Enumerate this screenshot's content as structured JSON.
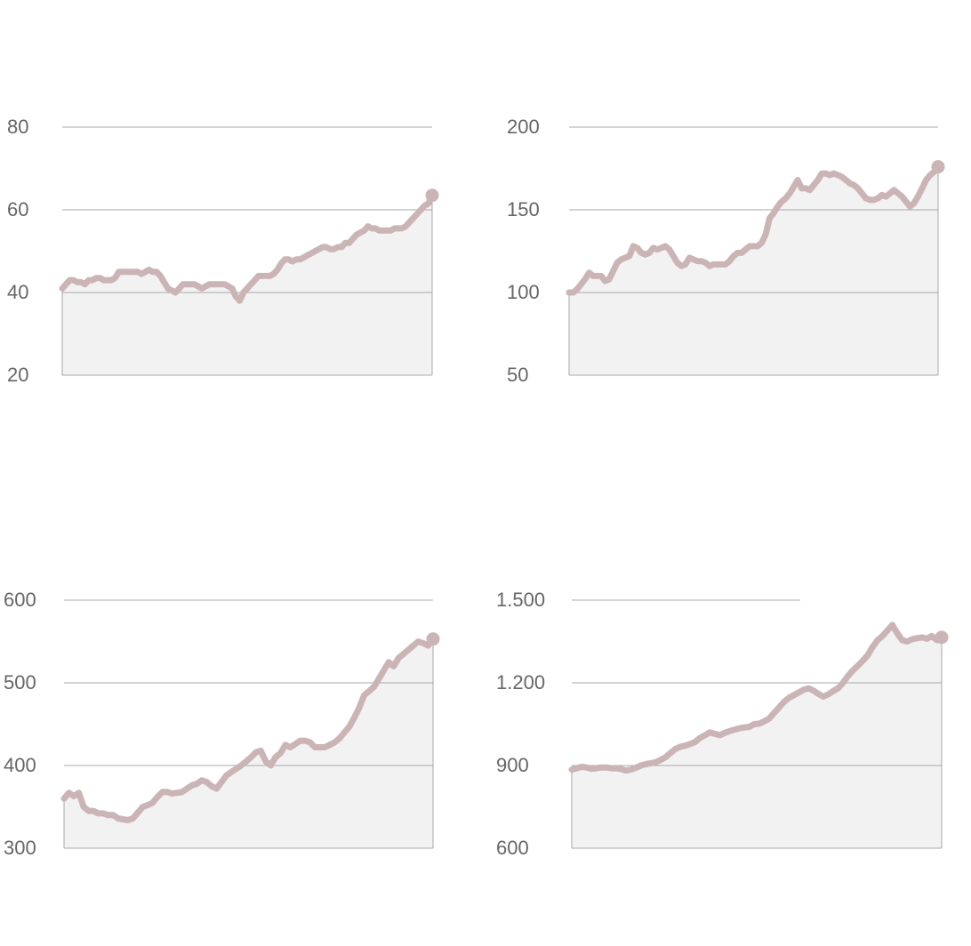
{
  "colors": {
    "line": "#cbb4b6",
    "area": "#f2f2f2",
    "grid": "#a8a8a8",
    "axis": "#a8a8a8",
    "text": "#666666"
  },
  "chart_data": [
    {
      "type": "area",
      "title": "",
      "ylim": [
        20,
        80
      ],
      "yticks": [
        20,
        40,
        60,
        80
      ],
      "ytick_labels": [
        "20",
        "40",
        "60",
        "80"
      ],
      "grid": true,
      "values": [
        41,
        42,
        43,
        43,
        42.5,
        42.5,
        42,
        43,
        43,
        43.5,
        43.5,
        43,
        43,
        43,
        43.5,
        45,
        45,
        45,
        45,
        45,
        45,
        44.5,
        45,
        45.5,
        45,
        45,
        44,
        42.5,
        41,
        40.5,
        40,
        41,
        42,
        42,
        42,
        42,
        41.5,
        41,
        41.5,
        42,
        42,
        42,
        42,
        42,
        41.5,
        41,
        39,
        38,
        40,
        41,
        42,
        43,
        44,
        44,
        44,
        44,
        44.5,
        45.5,
        47,
        48,
        48,
        47.5,
        48,
        48,
        48.5,
        49,
        49.5,
        50,
        50.5,
        51,
        51,
        50.5,
        50.5,
        51,
        51,
        52,
        52,
        53,
        54,
        54.5,
        55,
        56,
        55.5,
        55.5,
        55,
        55,
        55,
        55,
        55.5,
        55.5,
        55.5,
        56,
        57,
        58,
        59,
        60,
        61,
        61.5,
        63.5
      ]
    },
    {
      "type": "area",
      "title": "",
      "ylim": [
        50,
        200
      ],
      "yticks": [
        50,
        100,
        150,
        200
      ],
      "ytick_labels": [
        "50",
        "100",
        "150",
        "200"
      ],
      "grid": true,
      "values": [
        100,
        100,
        102,
        105,
        108,
        112,
        110,
        110,
        110,
        107,
        108,
        113,
        118,
        120,
        121,
        122,
        128,
        127,
        124,
        123,
        124,
        127,
        126,
        127,
        128,
        126,
        122,
        118,
        116,
        117,
        121,
        120,
        119,
        119,
        118,
        116,
        117,
        117,
        117,
        117,
        119,
        122,
        124,
        124,
        126,
        128,
        128,
        128,
        130,
        135,
        145,
        148,
        152,
        155,
        157,
        160,
        164,
        168,
        163,
        163,
        162,
        165,
        168,
        172,
        172,
        171,
        172,
        171,
        170,
        168,
        166,
        165,
        163,
        160,
        157,
        156,
        156,
        157,
        159,
        158,
        160,
        162,
        160,
        158,
        155,
        152,
        154,
        158,
        163,
        168,
        171,
        173,
        176
      ]
    },
    {
      "type": "area",
      "title": "",
      "ylim": [
        300,
        600
      ],
      "yticks": [
        300,
        400,
        500,
        600
      ],
      "ytick_labels": [
        "300",
        "400",
        "500",
        "600"
      ],
      "grid": true,
      "values": [
        360,
        367,
        363,
        367,
        350,
        345,
        345,
        342,
        342,
        340,
        340,
        336,
        335,
        334,
        336,
        343,
        350,
        352,
        355,
        362,
        368,
        368,
        366,
        367,
        368,
        372,
        376,
        378,
        382,
        380,
        375,
        372,
        380,
        388,
        392,
        396,
        400,
        405,
        410,
        416,
        418,
        405,
        400,
        410,
        415,
        425,
        422,
        426,
        430,
        430,
        428,
        422,
        422,
        422,
        425,
        428,
        433,
        440,
        447,
        458,
        470,
        485,
        490,
        495,
        505,
        515,
        525,
        520,
        530,
        535,
        540,
        545,
        550,
        548,
        545,
        553
      ]
    },
    {
      "type": "area",
      "title": "",
      "ylim": [
        600,
        1500
      ],
      "yticks": [
        600,
        900,
        1200,
        1500
      ],
      "ytick_labels": [
        "600",
        "900",
        "1.200",
        "1.500"
      ],
      "grid": true,
      "values": [
        885,
        890,
        895,
        893,
        888,
        890,
        893,
        893,
        890,
        890,
        887,
        882,
        885,
        892,
        900,
        905,
        908,
        912,
        920,
        930,
        945,
        960,
        968,
        972,
        978,
        985,
        1000,
        1010,
        1020,
        1015,
        1010,
        1018,
        1025,
        1030,
        1035,
        1038,
        1040,
        1050,
        1052,
        1060,
        1070,
        1090,
        1110,
        1130,
        1145,
        1155,
        1165,
        1175,
        1180,
        1172,
        1160,
        1150,
        1158,
        1170,
        1180,
        1200,
        1225,
        1245,
        1262,
        1280,
        1300,
        1330,
        1355,
        1370,
        1390,
        1410,
        1380,
        1355,
        1350,
        1358,
        1362,
        1365,
        1360,
        1370,
        1355,
        1365
      ]
    }
  ]
}
